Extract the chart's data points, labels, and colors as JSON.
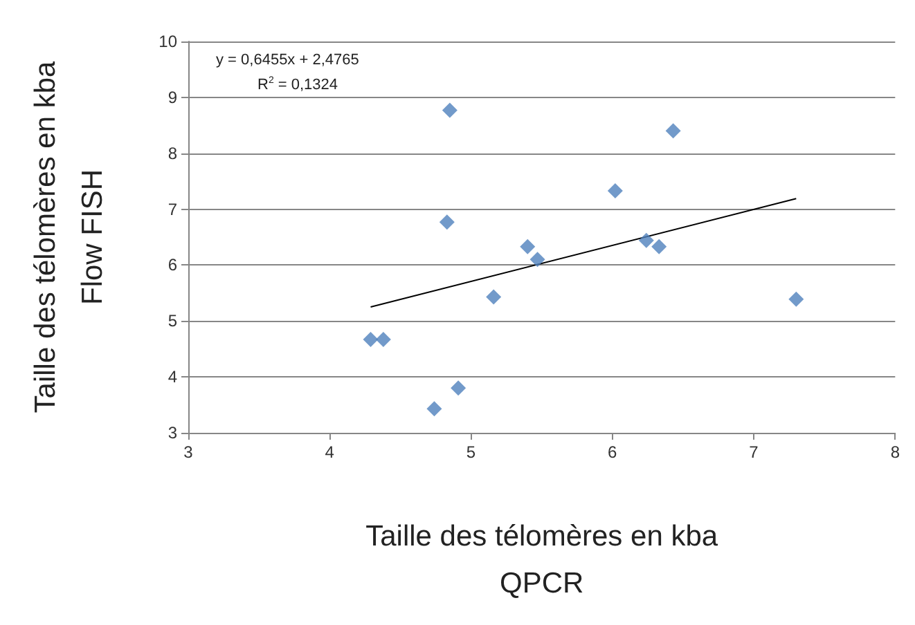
{
  "chart_data": {
    "type": "scatter",
    "xlabel": "Taille des télomères en kba\nQPCR",
    "ylabel": "Taille des télomères en kba\nFlow FISH",
    "xlim": [
      3,
      8
    ],
    "xticks": [
      3,
      4,
      5,
      6,
      7,
      8
    ],
    "ylim": [
      3,
      10
    ],
    "yticks": [
      3,
      4,
      5,
      6,
      7,
      8,
      9,
      10
    ],
    "grid": "y",
    "marker": "diamond",
    "series": [
      {
        "color": "#4f81bd",
        "x": [
          4.85,
          6.43,
          6.02,
          4.83,
          5.4,
          5.47,
          6.24,
          6.33,
          5.16,
          7.3,
          4.29,
          4.38,
          4.91,
          4.74
        ],
        "values": [
          8.77,
          8.4,
          7.33,
          6.77,
          6.33,
          6.1,
          6.44,
          6.33,
          5.43,
          5.39,
          4.67,
          4.67,
          3.8,
          3.43
        ]
      },
      {
        "type": "line",
        "color": "#000000",
        "marker": "none",
        "x": [
          4.29,
          7.3
        ],
        "values": [
          5.25,
          7.19
        ]
      }
    ],
    "annotations": [
      "y = 0,6455x + 2,4765",
      "R$^{2}$ = 0,1324"
    ]
  }
}
